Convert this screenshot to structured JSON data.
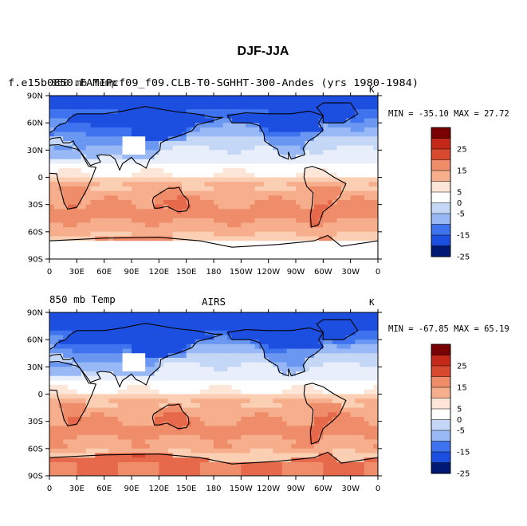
{
  "chart_data": {
    "type": "heatmap",
    "title": "DJF-JJA",
    "colors": {
      "palette": [
        "#001a73",
        "#0a2fc0",
        "#1c4fe0",
        "#3e72ee",
        "#6a97f2",
        "#98b9f5",
        "#c5d7f7",
        "#e8eefa",
        "#ffffff",
        "#fde6d8",
        "#fbcfb3",
        "#f6ae8c",
        "#ef8d6a",
        "#e5694a",
        "#d84a30",
        "#c42818",
        "#9e0c0a",
        "#780000"
      ],
      "land_missing": "#ffffff",
      "coast": "#000000"
    },
    "colorbar": {
      "levels": [
        -30,
        -25,
        -20,
        -15,
        -10,
        -5,
        0,
        5,
        10,
        15,
        20,
        25,
        30
      ],
      "tick_labels": [
        "25",
        "20",
        "15",
        "10",
        "5",
        "0",
        "-5",
        "-10",
        "-15",
        "-20",
        "-25"
      ],
      "shown_labels": [
        "25",
        "15",
        "5",
        "0",
        "-5",
        "-15",
        "-25"
      ],
      "label_rows": [
        1,
        3,
        5,
        6,
        7,
        9,
        11
      ]
    },
    "x_ticks": [
      "0",
      "30E",
      "60E",
      "90E",
      "120E",
      "150E",
      "180",
      "150W",
      "120W",
      "90W",
      "60W",
      "30W",
      "0"
    ],
    "y_ticks": [
      "90N",
      "60N",
      "30N",
      "0",
      "30S",
      "60S",
      "90S"
    ],
    "panels": [
      {
        "id": "model",
        "left_title": "f.e15b0850.FAMIPcf09_f09.CLB-T0-SGHHT-300-Andes (yrs 1980-1984)",
        "overlay_title": "850 mb Temp",
        "center_title": "",
        "units": "K",
        "stats": "MIN = -35.10 MAX =  27.72",
        "min": -35.1,
        "max": 27.72
      },
      {
        "id": "obs",
        "left_title": "850 mb Temp",
        "overlay_title": "",
        "center_title": "AIRS",
        "units": "K",
        "stats": "MIN = -67.85 MAX =  65.19",
        "min": -67.85,
        "max": 65.19
      }
    ]
  }
}
